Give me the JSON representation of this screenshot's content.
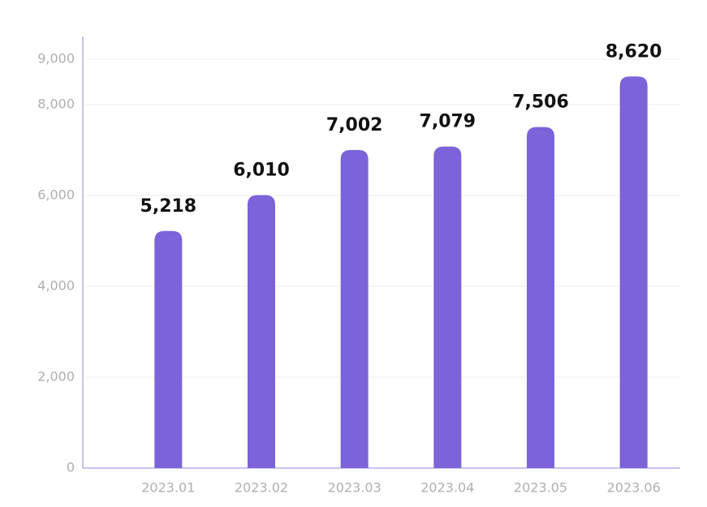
{
  "chart_data": {
    "type": "bar",
    "categories": [
      "2023.01",
      "2023.02",
      "2023.03",
      "2023.04",
      "2023.05",
      "2023.06"
    ],
    "values": [
      5218,
      6010,
      7002,
      7079,
      7506,
      8620
    ],
    "value_labels": [
      "5,218",
      "6,010",
      "7,002",
      "7,079",
      "7,506",
      "8,620"
    ],
    "color": "#7b63d9",
    "ylim": [
      0,
      9000
    ],
    "yticks": [
      0,
      {
        "value": 2000,
        "label": "2,000"
      },
      {
        "value": 4000,
        "label": "4,000"
      },
      {
        "value": 6000,
        "label": "6,000"
      },
      {
        "value": 8000,
        "label": "8,000"
      },
      {
        "value": 9000,
        "label": "9,000"
      }
    ],
    "grid": true
  }
}
